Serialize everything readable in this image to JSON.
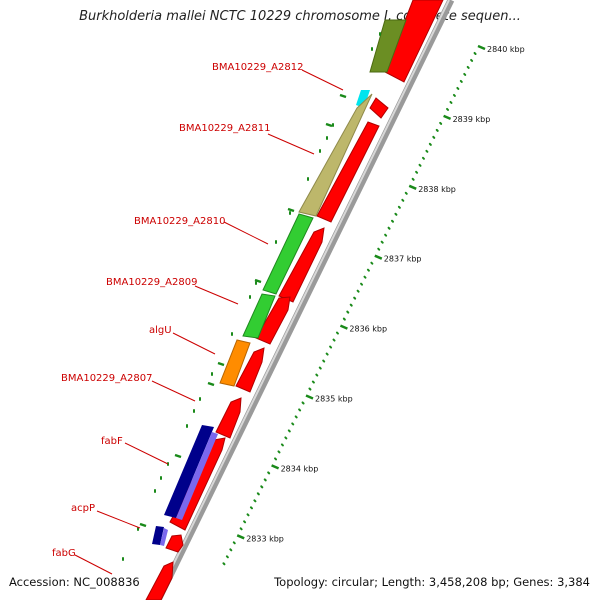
{
  "title": "Burkholderia mallei NCTC 10229 chromosome I, complete sequen...",
  "accession": "Accession: NC_008836",
  "summary": "Topology: circular; Length: 3,458,208 bp; Genes: 3,384",
  "colors": {
    "backbone": "#9a9a9a",
    "cds": "#ff0000",
    "ticks": "#1a8a1a",
    "label": "#cc0000"
  },
  "scale_ticks": [
    {
      "label": "2840 kbp"
    },
    {
      "label": "2839 kbp"
    },
    {
      "label": "2838 kbp"
    },
    {
      "label": "2837 kbp"
    },
    {
      "label": "2836 kbp"
    },
    {
      "label": "2835 kbp"
    },
    {
      "label": "2834 kbp"
    },
    {
      "label": "2833 kbp"
    }
  ],
  "gene_labels": [
    {
      "name": "BMA10229_A2812"
    },
    {
      "name": "BMA10229_A2811"
    },
    {
      "name": "BMA10229_A2810"
    },
    {
      "name": "BMA10229_A2809"
    },
    {
      "name": "algU"
    },
    {
      "name": "BMA10229_A2807"
    },
    {
      "name": "fabF"
    },
    {
      "name": "acpP"
    },
    {
      "name": "fabG"
    }
  ],
  "cog_colors": [
    "#6b8e23",
    "#00e5ee",
    "#bdb76b",
    "#32cd32",
    "#ff8c00",
    "#00008b",
    "#7b68ee"
  ]
}
